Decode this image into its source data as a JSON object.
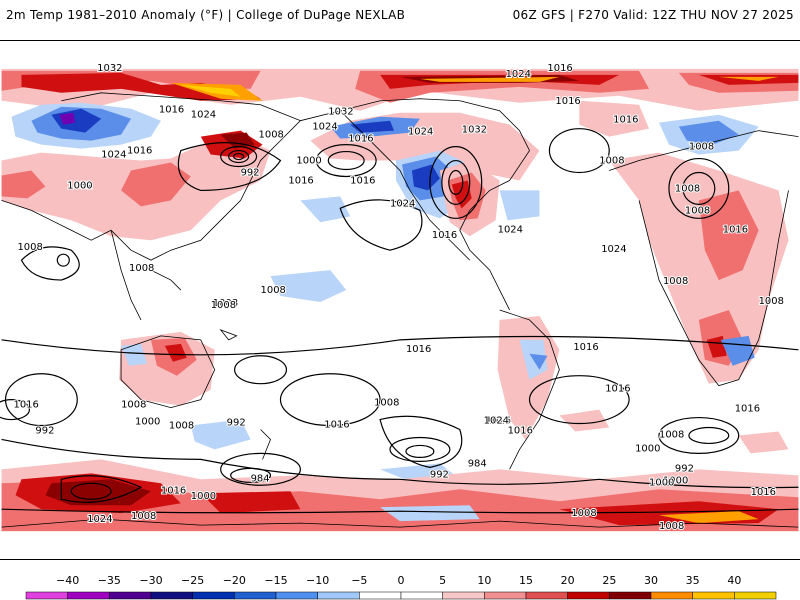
{
  "header": {
    "left_title": "2m Temp 1981–2010 Anomaly (°F) | College of DuPage NEXLAB",
    "right_title": "06Z GFS | F270 Valid: 12Z THU NOV 27 2025"
  },
  "colorbar": {
    "ticks": [
      "−40",
      "−35",
      "−30",
      "−25",
      "−20",
      "−15",
      "−10",
      "−5",
      "0",
      "5",
      "10",
      "15",
      "20",
      "25",
      "30",
      "35",
      "40"
    ],
    "colors": [
      "#e040e0",
      "#a000c0",
      "#500090",
      "#101080",
      "#0030b0",
      "#2060d0",
      "#5090f0",
      "#a0c8f8",
      "#ffffff",
      "#ffffff",
      "#f8c8c8",
      "#f09090",
      "#e05050",
      "#c00000",
      "#800000",
      "#ff8c00",
      "#ffc000",
      "#f0d000"
    ]
  },
  "map": {
    "colors": {
      "ocean": "#ffffff",
      "land_outline": "#000000",
      "warm_light": "#f8c0c0",
      "warm_mid": "#f07070",
      "warm_strong": "#d01010",
      "warm_dark": "#8b0000",
      "warm_extreme": "#ffa000",
      "cold_light": "#b8d4f8",
      "cold_mid": "#5a8ee8",
      "cold_strong": "#1a3cc0",
      "cold_extreme": "#7000b0"
    },
    "isobar_labels": [
      {
        "text": "1032"
      },
      {
        "text": "1016"
      },
      {
        "text": "1024"
      },
      {
        "text": "1008"
      },
      {
        "text": "1032"
      },
      {
        "text": "1024"
      },
      {
        "text": "1016"
      },
      {
        "text": "1024"
      },
      {
        "text": "1032"
      },
      {
        "text": "1016"
      },
      {
        "text": "992"
      },
      {
        "text": "1000"
      },
      {
        "text": "1016"
      },
      {
        "text": "1016"
      },
      {
        "text": "1024"
      },
      {
        "text": "1032"
      },
      {
        "text": "1024"
      },
      {
        "text": "1016"
      },
      {
        "text": "1000"
      },
      {
        "text": "1008"
      },
      {
        "text": "1024"
      },
      {
        "text": "1016"
      },
      {
        "text": "1016"
      },
      {
        "text": "1024"
      },
      {
        "text": "1016"
      },
      {
        "text": "1008"
      },
      {
        "text": "1008"
      },
      {
        "text": "1008"
      },
      {
        "text": "1008"
      },
      {
        "text": "1024"
      },
      {
        "text": "1016"
      },
      {
        "text": "1016"
      },
      {
        "text": "1008"
      },
      {
        "text": "1008"
      },
      {
        "text": "1008"
      },
      {
        "text": "1008"
      },
      {
        "text": "1008"
      },
      {
        "text": "1016"
      },
      {
        "text": "1016"
      },
      {
        "text": "1008"
      },
      {
        "text": "992"
      },
      {
        "text": "1016"
      },
      {
        "text": "1008"
      },
      {
        "text": "1000"
      },
      {
        "text": "984"
      },
      {
        "text": "992"
      },
      {
        "text": "1024"
      },
      {
        "text": "1016"
      },
      {
        "text": "1016"
      },
      {
        "text": "1008"
      },
      {
        "text": "1000"
      },
      {
        "text": "992"
      },
      {
        "text": "1000"
      },
      {
        "text": "1016"
      },
      {
        "text": "1016"
      },
      {
        "text": "992"
      },
      {
        "text": "1016"
      },
      {
        "text": "1008"
      },
      {
        "text": "1000"
      },
      {
        "text": "984"
      },
      {
        "text": "1000"
      },
      {
        "text": "1008"
      },
      {
        "text": "1024"
      },
      {
        "text": "1008"
      },
      {
        "text": "1008"
      },
      {
        "text": "1016"
      },
      {
        "text": "1008"
      }
    ]
  }
}
